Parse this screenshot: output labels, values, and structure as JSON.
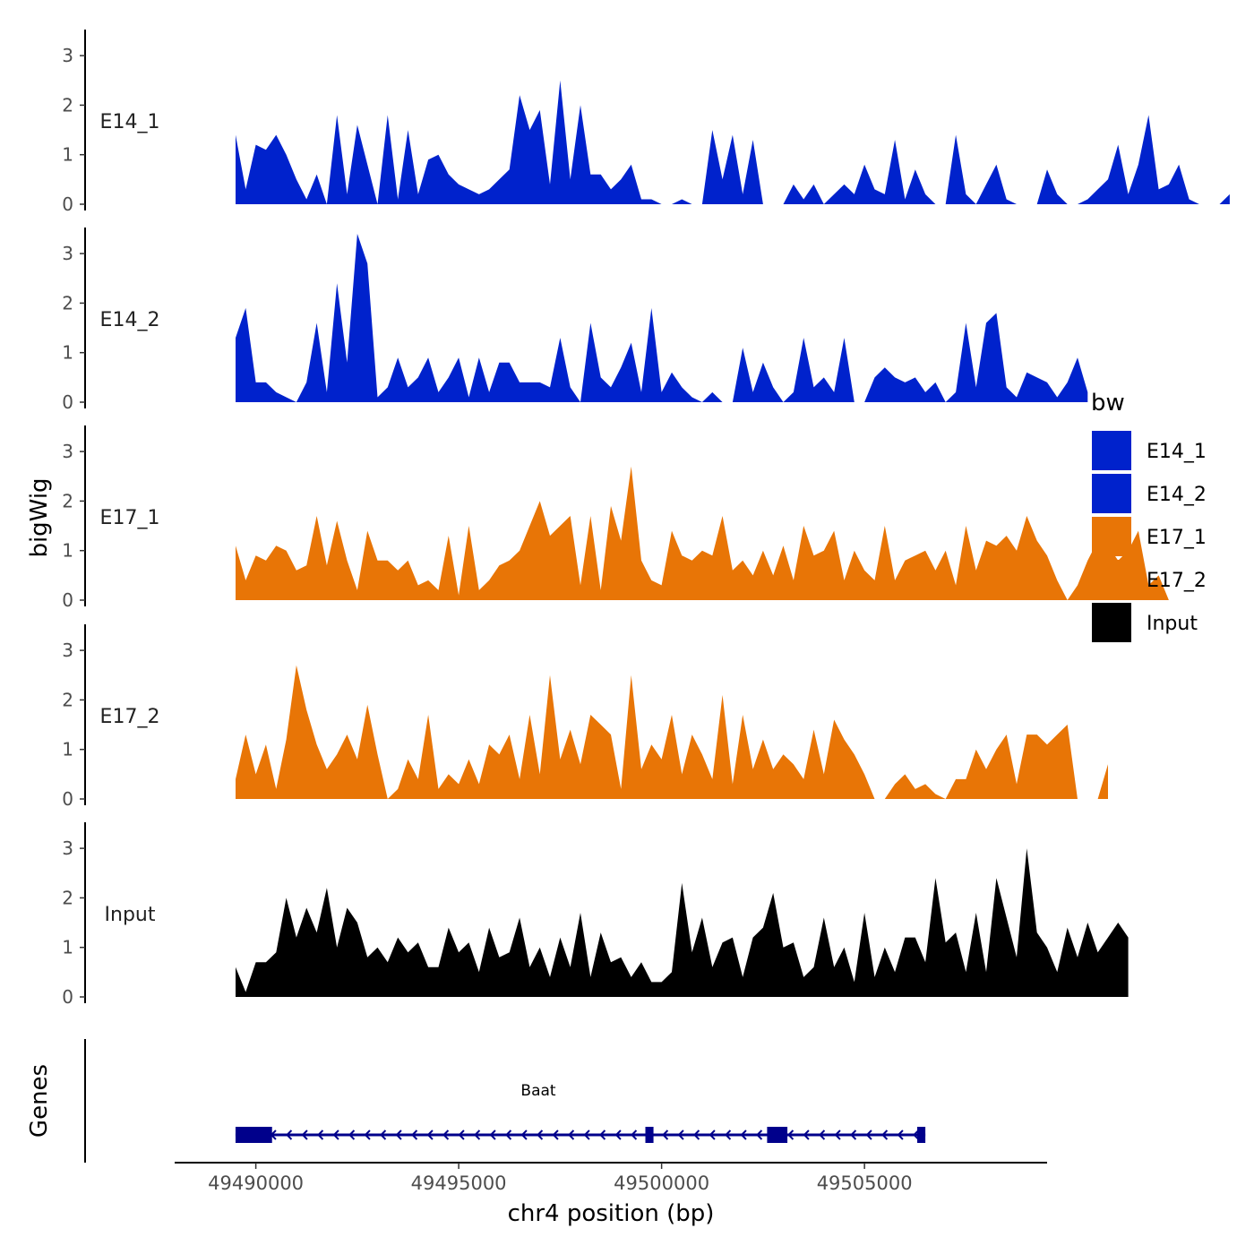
{
  "chart_data": {
    "type": "area",
    "xlabel": "chr4 position (bp)",
    "ylabel": "bigWig",
    "xlim": [
      49488000,
      49509500
    ],
    "ylim": [
      0,
      3.5
    ],
    "x_ticks": [
      49490000,
      49495000,
      49500000,
      49505000
    ],
    "x_tick_labels": [
      "49490000",
      "49495000",
      "49500000",
      "49505000"
    ],
    "y_ticks": [
      0,
      1,
      2,
      3
    ],
    "y_tick_labels": [
      "0",
      "1",
      "2",
      "3"
    ],
    "genes_label": "Genes",
    "gene": {
      "name": "Baat",
      "strand": "-",
      "start": 49489500,
      "end": 49506500,
      "exons": [
        [
          49489500,
          49490400
        ],
        [
          49499600,
          49499800
        ],
        [
          49502600,
          49503100
        ],
        [
          49506300,
          49506500
        ]
      ]
    },
    "legend": {
      "title": "bw",
      "position": "right",
      "entries": [
        {
          "label": "E14_1",
          "color": "#0022cc"
        },
        {
          "label": "E14_2",
          "color": "#0022cc"
        },
        {
          "label": "E17_1",
          "color": "#e87506"
        },
        {
          "label": "E17_2",
          "color": "#e87506"
        },
        {
          "label": "Input",
          "color": "#000000"
        }
      ]
    },
    "series": [
      {
        "name": "E14_1",
        "color": "#0022cc",
        "x_start": 49489500,
        "step": 250,
        "values": [
          1.4,
          0.3,
          1.2,
          1.1,
          1.4,
          1.0,
          0.5,
          0.1,
          0.6,
          0,
          1.8,
          0.2,
          1.6,
          0.8,
          0,
          1.8,
          0.1,
          1.5,
          0.2,
          0.9,
          1.0,
          0.6,
          0.4,
          0.3,
          0.2,
          0.3,
          0.5,
          0.7,
          2.2,
          1.5,
          1.9,
          0.4,
          2.5,
          0.5,
          2.0,
          0.6,
          0.6,
          0.3,
          0.5,
          0.8,
          0.1,
          0.1,
          0,
          0,
          0.1,
          0,
          0,
          1.5,
          0.5,
          1.4,
          0.2,
          1.3,
          0,
          0,
          0,
          0.4,
          0.1,
          0.4,
          0,
          0.2,
          0.4,
          0.2,
          0.8,
          0.3,
          0.2,
          1.3,
          0.1,
          0.7,
          0.2,
          0,
          0,
          1.4,
          0.2,
          0,
          0.4,
          0.8,
          0.1,
          0,
          0,
          0,
          0.7,
          0.2,
          0,
          0,
          0.1,
          0.3,
          0.5,
          1.2,
          0.2,
          0.8,
          1.8,
          0.3,
          0.4,
          0.8,
          0.1,
          0,
          0,
          0,
          0.2
        ]
      },
      {
        "name": "E14_2",
        "color": "#0022cc",
        "x_start": 49489500,
        "step": 250,
        "values": [
          1.3,
          1.9,
          0.4,
          0.4,
          0.2,
          0.1,
          0,
          0.4,
          1.6,
          0.2,
          2.4,
          0.8,
          3.4,
          2.8,
          0.1,
          0.3,
          0.9,
          0.3,
          0.5,
          0.9,
          0.2,
          0.5,
          0.9,
          0.1,
          0.9,
          0.2,
          0.8,
          0.8,
          0.4,
          0.4,
          0.4,
          0.3,
          1.3,
          0.3,
          0,
          1.6,
          0.5,
          0.3,
          0.7,
          1.2,
          0.2,
          1.9,
          0.2,
          0.6,
          0.3,
          0.1,
          0,
          0.2,
          0,
          0,
          1.1,
          0.2,
          0.8,
          0.3,
          0,
          0.2,
          1.3,
          0.3,
          0.5,
          0.2,
          1.3,
          0,
          0,
          0.5,
          0.7,
          0.5,
          0.4,
          0.5,
          0.2,
          0.4,
          0,
          0.2,
          1.6,
          0.3,
          1.6,
          1.8,
          0.3,
          0.1,
          0.6,
          0.5,
          0.4,
          0.1,
          0.4,
          0.9,
          0.2
        ]
      },
      {
        "name": "E17_1",
        "color": "#e87506",
        "x_start": 49489500,
        "step": 250,
        "values": [
          1.1,
          0.4,
          0.9,
          0.8,
          1.1,
          1.0,
          0.6,
          0.7,
          1.7,
          0.7,
          1.6,
          0.8,
          0.2,
          1.4,
          0.8,
          0.8,
          0.6,
          0.8,
          0.3,
          0.4,
          0.2,
          1.3,
          0.1,
          1.5,
          0.2,
          0.4,
          0.7,
          0.8,
          1.0,
          1.5,
          2.0,
          1.3,
          1.5,
          1.7,
          0.3,
          1.7,
          0.2,
          1.9,
          1.2,
          2.7,
          0.8,
          0.4,
          0.3,
          1.4,
          0.9,
          0.8,
          1.0,
          0.9,
          1.7,
          0.6,
          0.8,
          0.5,
          1.0,
          0.5,
          1.1,
          0.4,
          1.5,
          0.9,
          1.0,
          1.4,
          0.4,
          1.0,
          0.6,
          0.4,
          1.5,
          0.4,
          0.8,
          0.9,
          1.0,
          0.6,
          1.0,
          0.3,
          1.5,
          0.6,
          1.2,
          1.1,
          1.3,
          1.0,
          1.7,
          1.2,
          0.9,
          0.4,
          0,
          0.3,
          0.8,
          1.2,
          1.1,
          0.8,
          1.0,
          1.4,
          0.3,
          0.5,
          0
        ]
      },
      {
        "name": "E17_2",
        "color": "#e87506",
        "x_start": 49489500,
        "step": 250,
        "values": [
          0.4,
          1.3,
          0.5,
          1.1,
          0.2,
          1.2,
          2.7,
          1.8,
          1.1,
          0.6,
          0.9,
          1.3,
          0.8,
          1.9,
          0.9,
          0,
          0.2,
          0.8,
          0.4,
          1.7,
          0.2,
          0.5,
          0.3,
          0.8,
          0.3,
          1.1,
          0.9,
          1.3,
          0.4,
          1.7,
          0.5,
          2.5,
          0.8,
          1.4,
          0.7,
          1.7,
          1.5,
          1.3,
          0.2,
          2.5,
          0.6,
          1.1,
          0.8,
          1.7,
          0.5,
          1.3,
          0.9,
          0.4,
          2.1,
          0.3,
          1.7,
          0.6,
          1.2,
          0.6,
          0.9,
          0.7,
          0.4,
          1.4,
          0.5,
          1.6,
          1.2,
          0.9,
          0.5,
          0,
          0,
          0.3,
          0.5,
          0.2,
          0.3,
          0.1,
          0,
          0.4,
          0.4,
          1.0,
          0.6,
          1.0,
          1.3,
          0.3,
          1.3,
          1.3,
          1.1,
          1.3,
          1.5,
          0,
          0,
          0,
          0.7
        ]
      },
      {
        "name": "Input",
        "color": "#000000",
        "x_start": 49489500,
        "step": 250,
        "values": [
          0.6,
          0.1,
          0.7,
          0.7,
          0.9,
          2.0,
          1.2,
          1.8,
          1.3,
          2.2,
          1.0,
          1.8,
          1.5,
          0.8,
          1.0,
          0.7,
          1.2,
          0.9,
          1.1,
          0.6,
          0.6,
          1.4,
          0.9,
          1.1,
          0.5,
          1.4,
          0.8,
          0.9,
          1.6,
          0.6,
          1.0,
          0.4,
          1.2,
          0.6,
          1.7,
          0.4,
          1.3,
          0.7,
          0.8,
          0.4,
          0.7,
          0.3,
          0.3,
          0.5,
          2.3,
          0.9,
          1.6,
          0.6,
          1.1,
          1.2,
          0.4,
          1.2,
          1.4,
          2.1,
          1.0,
          1.1,
          0.4,
          0.6,
          1.6,
          0.6,
          1.0,
          0.3,
          1.7,
          0.4,
          1.0,
          0.5,
          1.2,
          1.2,
          0.7,
          2.4,
          1.1,
          1.3,
          0.5,
          1.7,
          0.5,
          2.4,
          1.6,
          0.8,
          3.0,
          1.3,
          1.0,
          0.5,
          1.4,
          0.8,
          1.5,
          0.9,
          1.2,
          1.5,
          1.2
        ]
      }
    ]
  }
}
